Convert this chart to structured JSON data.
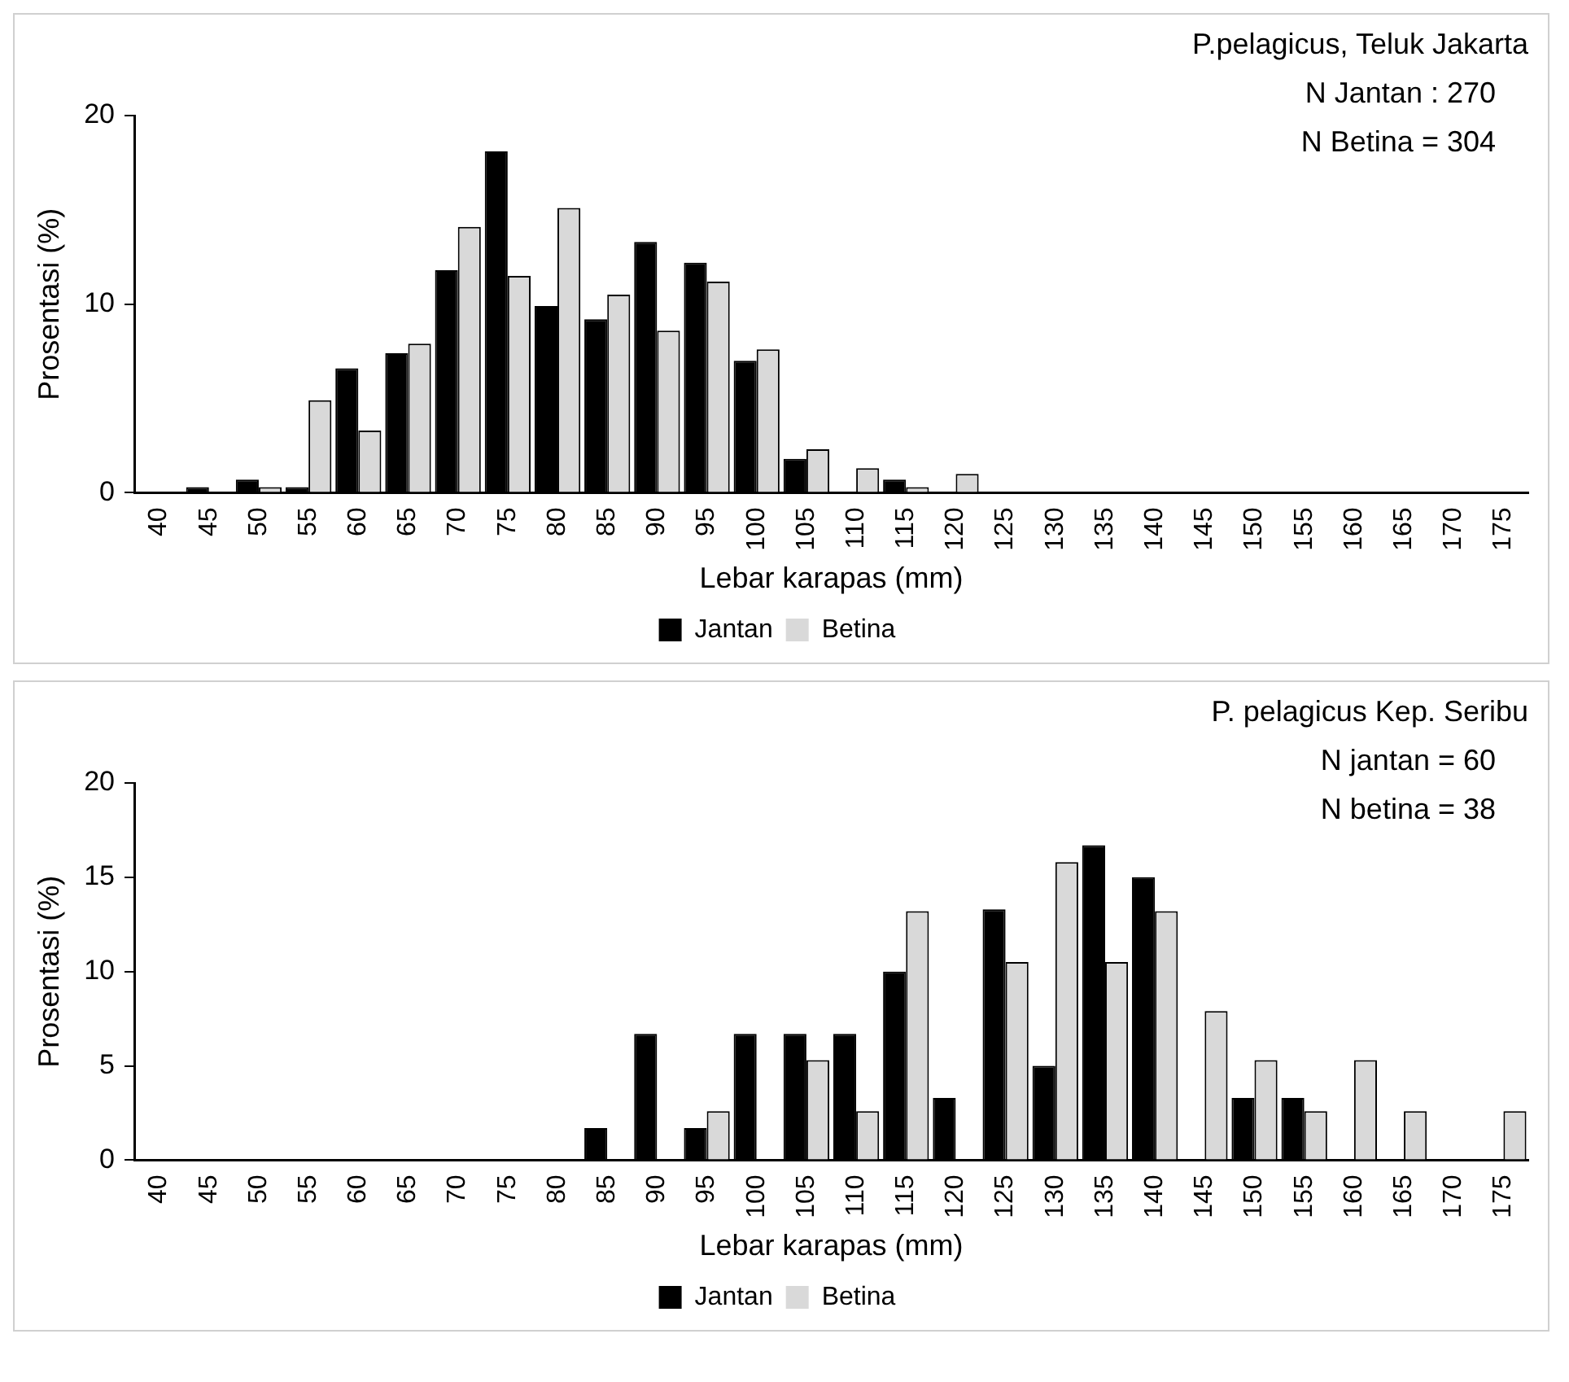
{
  "chart_data": [
    {
      "type": "bar",
      "annotations": [
        "P.pelagicus, Teluk Jakarta",
        "N Jantan : 270",
        "N Betina = 304"
      ],
      "xlabel": "Lebar karapas (mm)",
      "ylabel": "Prosentasi (%)",
      "categories": [
        "40",
        "45",
        "50",
        "55",
        "60",
        "65",
        "70",
        "75",
        "80",
        "85",
        "90",
        "95",
        "100",
        "105",
        "110",
        "115",
        "120",
        "125",
        "130",
        "135",
        "140",
        "145",
        "150",
        "155",
        "160",
        "165",
        "170",
        "175"
      ],
      "series": [
        {
          "name": "Jantan",
          "color": "#000000",
          "values": [
            0,
            0.3,
            0.7,
            0.3,
            6.6,
            7.4,
            11.8,
            18.1,
            9.9,
            9.2,
            13.3,
            12.2,
            7.0,
            1.8,
            0,
            0.7,
            0,
            0,
            0,
            0,
            0,
            0,
            0,
            0,
            0,
            0,
            0,
            0
          ]
        },
        {
          "name": "Betina",
          "color": "#d9d9d9",
          "values": [
            0,
            0,
            0.3,
            4.9,
            3.3,
            7.9,
            14.1,
            11.5,
            15.1,
            10.5,
            8.6,
            11.2,
            7.6,
            2.3,
            1.3,
            0.3,
            1.0,
            0,
            0,
            0,
            0,
            0,
            0,
            0,
            0,
            0,
            0,
            0
          ]
        }
      ],
      "ylim": [
        0,
        20
      ],
      "yticks": [
        0,
        10,
        20
      ],
      "grid": false,
      "legend": "bottom"
    },
    {
      "type": "bar",
      "annotations": [
        "P. pelagicus Kep. Seribu",
        "N jantan = 60",
        "N betina = 38"
      ],
      "xlabel": "Lebar karapas (mm)",
      "ylabel": "Prosentasi (%)",
      "categories": [
        "40",
        "45",
        "50",
        "55",
        "60",
        "65",
        "70",
        "75",
        "80",
        "85",
        "90",
        "95",
        "100",
        "105",
        "110",
        "115",
        "120",
        "125",
        "130",
        "135",
        "140",
        "145",
        "150",
        "155",
        "160",
        "165",
        "170",
        "175"
      ],
      "series": [
        {
          "name": "Jantan",
          "color": "#000000",
          "values": [
            0,
            0,
            0,
            0,
            0,
            0,
            0,
            0,
            0,
            1.7,
            6.7,
            1.7,
            6.7,
            6.7,
            6.7,
            10.0,
            3.3,
            13.3,
            5.0,
            16.7,
            15.0,
            0,
            3.3,
            3.3,
            0,
            0,
            0,
            0
          ]
        },
        {
          "name": "Betina",
          "color": "#d9d9d9",
          "values": [
            0,
            0,
            0,
            0,
            0,
            0,
            0,
            0,
            0,
            0,
            0,
            2.6,
            0,
            5.3,
            2.6,
            13.2,
            0,
            10.5,
            15.8,
            10.5,
            13.2,
            7.9,
            5.3,
            2.6,
            5.3,
            2.6,
            0,
            2.6
          ]
        }
      ],
      "ylim": [
        0,
        20
      ],
      "yticks": [
        0,
        5,
        10,
        15,
        20
      ],
      "grid": false,
      "legend": "bottom"
    }
  ]
}
